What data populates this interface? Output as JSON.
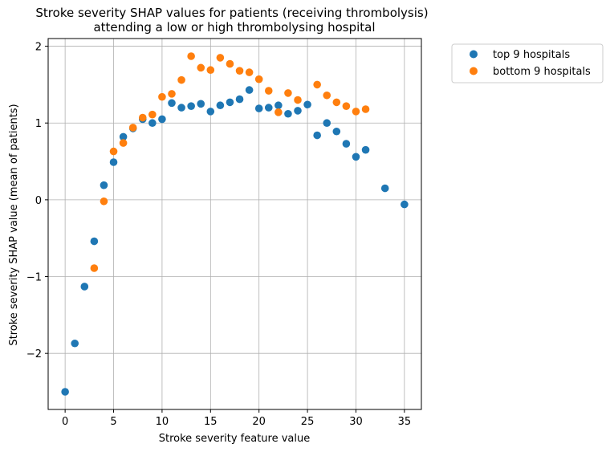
{
  "chart_data": {
    "type": "scatter",
    "title": "Stroke severity SHAP values for patients (receiving thrombolysis)",
    "subtitle": "attending a low or high thrombolysing hospital",
    "xlabel": "Stroke severity feature value",
    "ylabel": "Stroke severity SHAP value (mean of patients)",
    "xlim": [
      -1.75,
      36.75
    ],
    "ylim": [
      -2.73,
      2.1
    ],
    "xticks": [
      0,
      5,
      10,
      15,
      20,
      25,
      30,
      35
    ],
    "yticks": [
      -2,
      -1,
      0,
      1,
      2
    ],
    "xtick_labels": [
      "0",
      "5",
      "10",
      "15",
      "20",
      "25",
      "30",
      "35"
    ],
    "ytick_labels": [
      "−2",
      "−1",
      "0",
      "1",
      "2"
    ],
    "grid": true,
    "legend_position": "outside-top-right",
    "series": [
      {
        "name": "top 9 hospitals",
        "color": "#1f77b4",
        "x": [
          0,
          1,
          2,
          3,
          4,
          5,
          6,
          7,
          8,
          9,
          10,
          11,
          12,
          13,
          14,
          15,
          16,
          17,
          18,
          19,
          20,
          21,
          22,
          23,
          24,
          25,
          26,
          27,
          28,
          29,
          30,
          31,
          33,
          35
        ],
        "y": [
          -2.5,
          -1.87,
          -1.13,
          -0.54,
          0.19,
          0.49,
          0.82,
          0.93,
          1.05,
          1.0,
          1.05,
          1.26,
          1.2,
          1.22,
          1.25,
          1.15,
          1.23,
          1.27,
          1.31,
          1.43,
          1.19,
          1.2,
          1.23,
          1.12,
          1.16,
          1.24,
          0.84,
          1.0,
          0.89,
          0.73,
          0.56,
          0.65,
          0.15,
          -0.06
        ]
      },
      {
        "name": "bottom 9 hospitals",
        "color": "#ff7f0e",
        "x": [
          3,
          4,
          5,
          6,
          7,
          8,
          9,
          10,
          11,
          12,
          13,
          14,
          15,
          16,
          17,
          18,
          19,
          20,
          21,
          22,
          23,
          24,
          26,
          27,
          28,
          29,
          30,
          31
        ],
        "y": [
          -0.89,
          -0.02,
          0.63,
          0.74,
          0.94,
          1.07,
          1.11,
          1.34,
          1.38,
          1.56,
          1.87,
          1.72,
          1.69,
          1.85,
          1.77,
          1.68,
          1.66,
          1.57,
          1.42,
          1.14,
          1.39,
          1.3,
          1.5,
          1.36,
          1.27,
          1.22,
          1.15,
          1.18
        ]
      }
    ]
  }
}
